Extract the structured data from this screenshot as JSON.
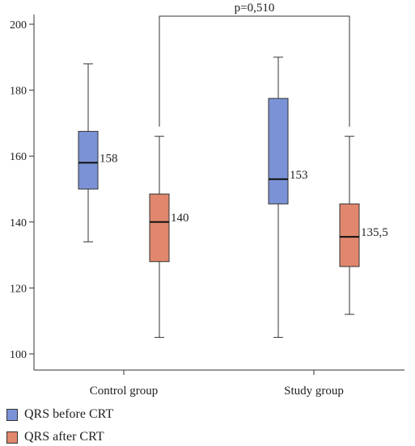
{
  "chart_data": {
    "type": "box",
    "ylim": [
      100,
      200
    ],
    "yticks": [
      100,
      120,
      140,
      160,
      180,
      200
    ],
    "categories": [
      "Control group",
      "Study group"
    ],
    "series": [
      {
        "name": "QRS before CRT",
        "color": "#7b93d6",
        "boxes": [
          {
            "category": "Control group",
            "whisker_low": 134,
            "q1": 150,
            "median": 158,
            "q3": 167.5,
            "whisker_high": 188,
            "label": "158"
          },
          {
            "category": "Study group",
            "whisker_low": 105,
            "q1": 145.5,
            "median": 153,
            "q3": 177.5,
            "whisker_high": 190,
            "label": "153"
          }
        ]
      },
      {
        "name": "QRS after CRT",
        "color": "#e0876d",
        "boxes": [
          {
            "category": "Control group",
            "whisker_low": 105,
            "q1": 128,
            "median": 140,
            "q3": 148.5,
            "whisker_high": 166,
            "label": "140"
          },
          {
            "category": "Study group",
            "whisker_low": 112,
            "q1": 126.5,
            "median": 135.5,
            "q3": 145.5,
            "whisker_high": 166,
            "label": "135,5"
          }
        ]
      }
    ],
    "annotation": "p=0,510",
    "legend_position": "bottom-left"
  }
}
